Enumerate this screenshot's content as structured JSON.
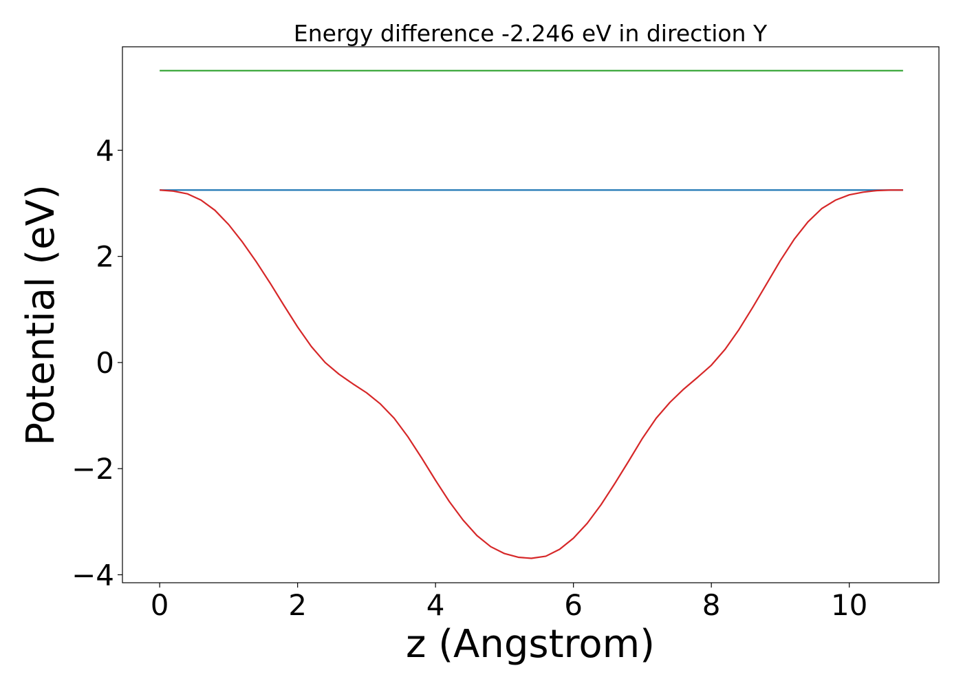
{
  "chart_data": {
    "type": "line",
    "title": "Energy difference -2.246 eV in direction Y",
    "xlabel": "z (Angstrom)",
    "ylabel": "Potential (eV)",
    "xlim": [
      -0.54,
      11.3
    ],
    "ylim": [
      -4.15,
      5.95
    ],
    "xticks": [
      0,
      2,
      4,
      6,
      8,
      10
    ],
    "yticks": [
      -4,
      -2,
      0,
      2,
      4
    ],
    "xtick_labels": [
      "0",
      "2",
      "4",
      "6",
      "8",
      "10"
    ],
    "ytick_labels": [
      "−4",
      "−2",
      "0",
      "2",
      "4"
    ],
    "grid": false,
    "series": [
      {
        "color": "#2ca02c",
        "x": [
          0,
          10.78
        ],
        "y": [
          5.5,
          5.5
        ]
      },
      {
        "color": "#1f77b4",
        "x": [
          0,
          10.78
        ],
        "y": [
          3.25,
          3.25
        ]
      },
      {
        "color": "#d62728",
        "x": [
          0,
          0.2,
          0.4,
          0.6,
          0.8,
          1.0,
          1.2,
          1.4,
          1.6,
          1.8,
          2.0,
          2.2,
          2.4,
          2.6,
          2.8,
          3.0,
          3.2,
          3.4,
          3.6,
          3.8,
          4.0,
          4.2,
          4.4,
          4.6,
          4.8,
          5.0,
          5.2,
          5.39,
          5.6,
          5.8,
          6.0,
          6.2,
          6.4,
          6.6,
          6.8,
          7.0,
          7.2,
          7.4,
          7.6,
          7.8,
          8.0,
          8.2,
          8.4,
          8.6,
          8.8,
          9.0,
          9.2,
          9.4,
          9.6,
          9.8,
          10.0,
          10.2,
          10.4,
          10.6,
          10.78
        ],
        "y": [
          3.25,
          3.23,
          3.18,
          3.06,
          2.87,
          2.6,
          2.27,
          1.9,
          1.5,
          1.08,
          0.67,
          0.3,
          0.0,
          -0.22,
          -0.4,
          -0.57,
          -0.78,
          -1.05,
          -1.4,
          -1.8,
          -2.22,
          -2.62,
          -2.97,
          -3.26,
          -3.47,
          -3.6,
          -3.67,
          -3.69,
          -3.65,
          -3.52,
          -3.31,
          -3.03,
          -2.68,
          -2.28,
          -1.86,
          -1.43,
          -1.05,
          -0.75,
          -0.5,
          -0.28,
          -0.05,
          0.25,
          0.62,
          1.04,
          1.48,
          1.92,
          2.32,
          2.65,
          2.9,
          3.06,
          3.16,
          3.21,
          3.24,
          3.25,
          3.25
        ]
      }
    ]
  }
}
